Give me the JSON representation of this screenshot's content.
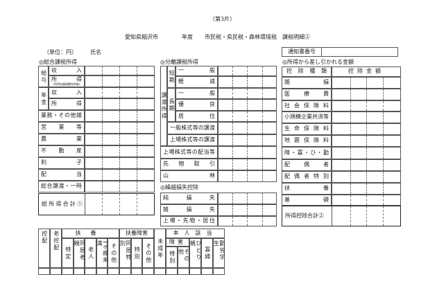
{
  "header": {
    "sheet": "（第3片）",
    "city": "愛知県稲沢市",
    "year": "年度",
    "taxes": "市民税・県民税・森林環境税",
    "doc": "課税明細②",
    "unit": "（単位：円）",
    "name_label": "氏名",
    "notice_label": "通知書番号",
    "notice_value": ""
  },
  "general": {
    "heading": "◎総合課税所得",
    "salary": "給与",
    "pension": "年金",
    "income_amt": "収入",
    "income": "所得",
    "income_note": "（所得金額調整控除後）",
    "rows": [
      "業務・その他雑",
      "営業等",
      "農業",
      "不動産",
      "利子",
      "配当",
      "総合譲渡・一時"
    ],
    "total": "総所得合計①"
  },
  "separate": {
    "heading": "◎分離課税所得",
    "transfer": "譲渡所得",
    "short": "短期",
    "long": "長期",
    "short_rows": [
      "一般",
      "軽減"
    ],
    "long_rows": [
      "一般",
      "優良",
      "居住"
    ],
    "stock_rows": [
      "一般株式等の譲渡",
      "上場株式等の譲渡"
    ],
    "rows": [
      "上場株式等の配当等",
      "先物取引",
      "山林"
    ]
  },
  "carryover": {
    "heading": "◎繰越損失控除",
    "rows": [
      "純損失",
      "雑損失",
      "上場・先物・居住"
    ]
  },
  "deduction": {
    "heading": "◎所得から差し引かれる金額",
    "col_type": "控除種類",
    "col_amount": "控除金額",
    "rows": [
      "雑損",
      "医療費",
      "社会保険料",
      "小規模企業共済等",
      "生命保険料",
      "地震保険料",
      "障・寡・ひ・勤",
      "配偶者",
      "配偶者特別",
      "扶養",
      "基礎"
    ],
    "total": "所得控除合計②"
  },
  "dependents": {
    "spouse": "控配",
    "elder_spouse": "老控配",
    "support": "扶養",
    "support_cols": [
      "特定",
      "同居老親",
      "老人",
      "16歳未満",
      "その他"
    ],
    "disabled": "扶養障害",
    "disabled_cols": [
      "同居特別",
      "特別",
      "その他"
    ],
    "minor": "未成年",
    "self": "本人該当",
    "self_disabled": "障害",
    "self_disabled_cols": [
      "特別",
      "その他"
    ],
    "self_cols": [
      "ひとり親",
      "寡婦",
      "勤労学生"
    ]
  }
}
